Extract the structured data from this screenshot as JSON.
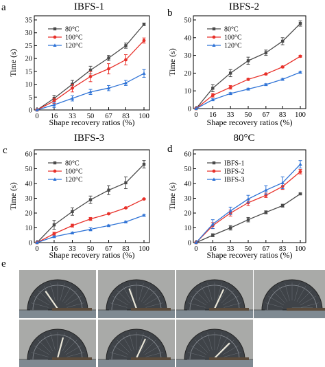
{
  "colors": {
    "s80": "#4a4a4a",
    "s100": "#e8312a",
    "s120": "#2f73d6",
    "ibfs1": "#4a4a4a",
    "ibfs2": "#e8312a",
    "ibfs3": "#2f73d6",
    "photo_bg": "#a9aaa8",
    "photo_dark": "#3f4348",
    "ruler": "#7f8a92"
  },
  "chart_data": [
    {
      "type": "line",
      "panel_letter": "a",
      "title": "IBFS-1",
      "xlabel": "Shape recovery ratios (%)",
      "ylabel": "Time (s)",
      "x": [
        0,
        16,
        33,
        50,
        67,
        83,
        100
      ],
      "x_tick_labels": [
        "0",
        "16",
        "33",
        "50",
        "67",
        "83",
        "100"
      ],
      "ylim": [
        0,
        35
      ],
      "y_ticks": [
        0,
        5,
        10,
        15,
        20,
        25,
        30,
        35
      ],
      "legend_position": "top-left",
      "series": [
        {
          "name": "80°C",
          "color_key": "s80",
          "marker": "square",
          "values": [
            0,
            4.5,
            10,
            15.5,
            20.2,
            25,
            33.3
          ],
          "errors": [
            0,
            1.2,
            1.5,
            1.5,
            1.0,
            1.0,
            0.5
          ]
        },
        {
          "name": "100°C",
          "color_key": "s100",
          "marker": "circle",
          "values": [
            0,
            3.5,
            8.5,
            13,
            16,
            19.5,
            27
          ],
          "errors": [
            0,
            1.0,
            1.5,
            2.0,
            2.0,
            2.0,
            1.0
          ]
        },
        {
          "name": "120°C",
          "color_key": "s120",
          "marker": "triangle",
          "values": [
            0,
            2.0,
            4.5,
            7.0,
            8.5,
            10.5,
            14.2
          ],
          "errors": [
            0,
            1.0,
            1.0,
            1.0,
            1.0,
            1.0,
            1.5
          ]
        }
      ]
    },
    {
      "type": "line",
      "panel_letter": "b",
      "title": "IBFS-2",
      "xlabel": "Shape recovery ratios (%)",
      "ylabel": "Time (s)",
      "x": [
        0,
        16,
        33,
        50,
        67,
        83,
        100
      ],
      "x_tick_labels": [
        "0",
        "16",
        "33",
        "50",
        "67",
        "83",
        "100"
      ],
      "ylim": [
        0,
        50
      ],
      "y_ticks": [
        0,
        10,
        20,
        30,
        40,
        50
      ],
      "legend_position": "top-left",
      "series": [
        {
          "name": "80°C",
          "color_key": "s80",
          "marker": "square",
          "values": [
            0,
            11.5,
            20,
            27,
            31.5,
            38,
            48
          ],
          "errors": [
            0,
            2.0,
            2.0,
            2.0,
            1.5,
            2.0,
            1.5
          ]
        },
        {
          "name": "100°C",
          "color_key": "s100",
          "marker": "circle",
          "values": [
            0,
            7.5,
            12,
            16.5,
            19.5,
            23.5,
            29.5
          ],
          "errors": [
            0,
            1.0,
            1.0,
            0.5,
            0.5,
            0.5,
            0.5
          ]
        },
        {
          "name": "120°C",
          "color_key": "s120",
          "marker": "triangle",
          "values": [
            0,
            5,
            8.5,
            11,
            13.5,
            16.5,
            20.5
          ],
          "errors": [
            0,
            0.5,
            0.5,
            0.5,
            0.5,
            0.5,
            0.5
          ]
        }
      ]
    },
    {
      "type": "line",
      "panel_letter": "c",
      "title": "IBFS-3",
      "xlabel": "Shape recovery ratios (%)",
      "ylabel": "Time (s)",
      "x": [
        0,
        16,
        33,
        50,
        67,
        83,
        100
      ],
      "x_tick_labels": [
        "0",
        "16",
        "33",
        "50",
        "67",
        "83",
        "100"
      ],
      "ylim": [
        0,
        60
      ],
      "y_ticks": [
        0,
        10,
        20,
        30,
        40,
        50,
        60
      ],
      "legend_position": "top-left",
      "series": [
        {
          "name": "80°C",
          "color_key": "s80",
          "marker": "square",
          "values": [
            0,
            12,
            21,
            29,
            35.5,
            40.5,
            53
          ],
          "errors": [
            0,
            3.0,
            2.5,
            2.5,
            3.0,
            4.0,
            2.5
          ]
        },
        {
          "name": "100°C",
          "color_key": "s100",
          "marker": "circle",
          "values": [
            0,
            6,
            11.5,
            16,
            19.5,
            23.5,
            29.5
          ],
          "errors": [
            0,
            1.0,
            1.0,
            1.0,
            0.5,
            0.5,
            0.5
          ]
        },
        {
          "name": "120°C",
          "color_key": "s120",
          "marker": "triangle",
          "values": [
            0,
            4,
            6.5,
            9,
            11.5,
            14,
            18.5
          ],
          "errors": [
            0,
            0.5,
            0.5,
            1.0,
            0.5,
            0.5,
            0.5
          ]
        }
      ]
    },
    {
      "type": "line",
      "panel_letter": "d",
      "title": "80°C",
      "xlabel": "Shape recovery ratios (%)",
      "ylabel": "Time (s)",
      "x": [
        0,
        16,
        33,
        50,
        67,
        83,
        100
      ],
      "x_tick_labels": [
        "0",
        "16",
        "33",
        "50",
        "67",
        "83",
        "100"
      ],
      "ylim": [
        0,
        60
      ],
      "y_ticks": [
        0,
        10,
        20,
        30,
        40,
        50,
        60
      ],
      "legend_position": "top-left",
      "series": [
        {
          "name": "IBFS-1",
          "color_key": "ibfs1",
          "marker": "square",
          "values": [
            0,
            5,
            10,
            15.5,
            20.5,
            25,
            33
          ],
          "errors": [
            0,
            1.0,
            1.5,
            1.5,
            1.0,
            1.0,
            0.5
          ]
        },
        {
          "name": "IBFS-2",
          "color_key": "ibfs2",
          "marker": "circle",
          "values": [
            0,
            11.5,
            20,
            27,
            32,
            38,
            48
          ],
          "errors": [
            0,
            2.0,
            2.0,
            2.0,
            1.5,
            2.0,
            1.5
          ]
        },
        {
          "name": "IBFS-3",
          "color_key": "ibfs3",
          "marker": "triangle",
          "values": [
            0,
            12.5,
            21.5,
            29.5,
            35.5,
            40.5,
            53
          ],
          "errors": [
            0,
            3.0,
            2.5,
            2.5,
            3.0,
            4.0,
            2.5
          ]
        }
      ]
    }
  ],
  "photos": {
    "panel_letter": "e",
    "stick_angles_deg": [
      -35,
      -20,
      25,
      90,
      15,
      25,
      45
    ]
  }
}
